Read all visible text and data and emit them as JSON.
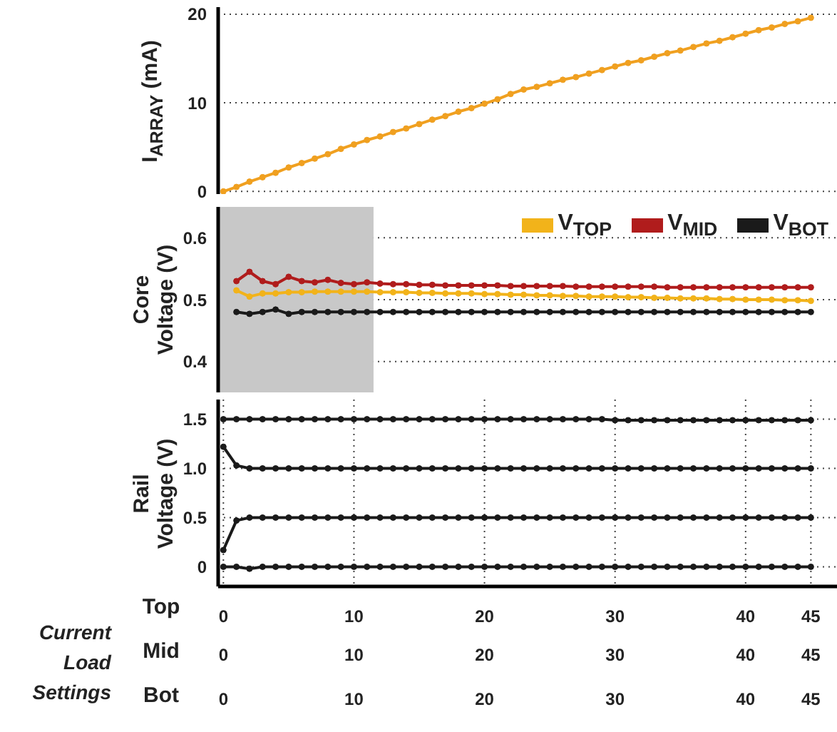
{
  "chart_data": [
    {
      "type": "line",
      "ylabel": "I$_{ARRAY}$ (mA)",
      "x": [
        0,
        1,
        2,
        3,
        4,
        5,
        6,
        7,
        8,
        9,
        10,
        11,
        12,
        13,
        14,
        15,
        16,
        17,
        18,
        19,
        20,
        21,
        22,
        23,
        24,
        25,
        26,
        27,
        28,
        29,
        30,
        31,
        32,
        33,
        34,
        35,
        36,
        37,
        38,
        39,
        40,
        41,
        42,
        43,
        44,
        45
      ],
      "series": [
        {
          "color": "#f0a020",
          "values": [
            0,
            0.5,
            1.1,
            1.6,
            2.1,
            2.7,
            3.2,
            3.7,
            4.2,
            4.8,
            5.3,
            5.8,
            6.2,
            6.7,
            7.1,
            7.6,
            8.1,
            8.5,
            9.0,
            9.4,
            9.9,
            10.4,
            11.0,
            11.5,
            11.8,
            12.2,
            12.6,
            12.9,
            13.3,
            13.7,
            14.1,
            14.5,
            14.8,
            15.2,
            15.6,
            15.9,
            16.3,
            16.7,
            17.0,
            17.4,
            17.8,
            18.2,
            18.5,
            18.9,
            19.2,
            19.6
          ]
        }
      ],
      "xlim": [
        -0.4,
        47
      ],
      "xticks": [
        0,
        10,
        20,
        30,
        40,
        45
      ],
      "ylim": [
        -0.3,
        20.8
      ],
      "yticks": [
        0,
        10,
        20
      ],
      "grid": true,
      "marker": "circle",
      "tick_labels": "y"
    },
    {
      "type": "line",
      "ylabel": "Core\nVoltage (V)",
      "x": [
        1,
        2,
        3,
        4,
        5,
        6,
        7,
        8,
        9,
        10,
        11,
        12,
        13,
        14,
        15,
        16,
        17,
        18,
        19,
        20,
        21,
        22,
        23,
        24,
        25,
        26,
        27,
        28,
        29,
        30,
        31,
        32,
        33,
        34,
        35,
        36,
        37,
        38,
        39,
        40,
        41,
        42,
        43,
        44,
        45
      ],
      "series": [
        {
          "name": "V$_{TOP}$",
          "color": "#f2b31a",
          "values": [
            0.515,
            0.505,
            0.51,
            0.51,
            0.512,
            0.512,
            0.513,
            0.513,
            0.513,
            0.513,
            0.513,
            0.512,
            0.512,
            0.512,
            0.511,
            0.511,
            0.51,
            0.51,
            0.51,
            0.509,
            0.509,
            0.508,
            0.508,
            0.507,
            0.507,
            0.506,
            0.506,
            0.505,
            0.505,
            0.505,
            0.504,
            0.504,
            0.503,
            0.503,
            0.502,
            0.502,
            0.502,
            0.501,
            0.501,
            0.5,
            0.5,
            0.5,
            0.499,
            0.499,
            0.498
          ]
        },
        {
          "name": "V$_{MID}$",
          "color": "#b01c1c",
          "values": [
            0.53,
            0.545,
            0.53,
            0.525,
            0.537,
            0.53,
            0.528,
            0.532,
            0.527,
            0.525,
            0.528,
            0.526,
            0.525,
            0.525,
            0.524,
            0.524,
            0.523,
            0.523,
            0.523,
            0.523,
            0.523,
            0.522,
            0.522,
            0.522,
            0.522,
            0.522,
            0.521,
            0.521,
            0.521,
            0.521,
            0.521,
            0.521,
            0.521,
            0.52,
            0.52,
            0.52,
            0.52,
            0.52,
            0.52,
            0.52,
            0.52,
            0.52,
            0.52,
            0.52,
            0.52
          ]
        },
        {
          "name": "V$_{BOT}$",
          "color": "#1a1a1a",
          "values": [
            0.48,
            0.477,
            0.48,
            0.484,
            0.477,
            0.48,
            0.48,
            0.48,
            0.48,
            0.48,
            0.48,
            0.48,
            0.48,
            0.48,
            0.48,
            0.48,
            0.48,
            0.48,
            0.48,
            0.48,
            0.48,
            0.48,
            0.48,
            0.48,
            0.48,
            0.48,
            0.48,
            0.48,
            0.48,
            0.48,
            0.48,
            0.48,
            0.48,
            0.48,
            0.48,
            0.48,
            0.48,
            0.48,
            0.48,
            0.48,
            0.48,
            0.48,
            0.48,
            0.48,
            0.48
          ]
        }
      ],
      "bands": [
        {
          "axis": "x",
          "from": -0.4,
          "to": 11.5,
          "color": "#c8c8c8"
        }
      ],
      "xlim": [
        -0.4,
        47
      ],
      "xticks": [
        0,
        10,
        20,
        30,
        40,
        45
      ],
      "ylim": [
        0.35,
        0.65
      ],
      "yticks": [
        0.4,
        0.5,
        0.6
      ],
      "grid": true,
      "marker": "circle",
      "legend": "top right",
      "tick_labels": "y"
    },
    {
      "type": "line",
      "ylabel": "Rail\nVoltage (V)",
      "xlabel": "Current Load Settings",
      "annotations": [
        "Top",
        "Mid",
        "Bot",
        "0",
        "10",
        "20",
        "30",
        "40",
        "45",
        "0",
        "10",
        "20",
        "30",
        "40",
        "45"
      ],
      "x": [
        0,
        1,
        2,
        3,
        4,
        5,
        6,
        7,
        8,
        9,
        10,
        11,
        12,
        13,
        14,
        15,
        16,
        17,
        18,
        19,
        20,
        21,
        22,
        23,
        24,
        25,
        26,
        27,
        28,
        29,
        30,
        31,
        32,
        33,
        34,
        35,
        36,
        37,
        38,
        39,
        40,
        41,
        42,
        43,
        44,
        45
      ],
      "series": [
        {
          "color": "#1a1a1a",
          "values": [
            1.5,
            1.5,
            1.5,
            1.5,
            1.5,
            1.5,
            1.5,
            1.5,
            1.5,
            1.5,
            1.5,
            1.5,
            1.5,
            1.5,
            1.5,
            1.5,
            1.5,
            1.5,
            1.5,
            1.5,
            1.5,
            1.5,
            1.5,
            1.5,
            1.5,
            1.5,
            1.5,
            1.5,
            1.5,
            1.5,
            1.49,
            1.49,
            1.49,
            1.49,
            1.49,
            1.49,
            1.49,
            1.49,
            1.49,
            1.49,
            1.49,
            1.49,
            1.49,
            1.49,
            1.49,
            1.49
          ]
        },
        {
          "color": "#1a1a1a",
          "values": [
            1.22,
            1.03,
            1.0,
            1.0,
            1.0,
            1.0,
            1.0,
            1.0,
            1.0,
            1.0,
            1.0,
            1.0,
            1.0,
            1.0,
            1.0,
            1.0,
            1.0,
            1.0,
            1.0,
            1.0,
            1.0,
            1.0,
            1.0,
            1.0,
            1.0,
            1.0,
            1.0,
            1.0,
            1.0,
            1.0,
            1.0,
            1.0,
            1.0,
            1.0,
            1.0,
            1.0,
            1.0,
            1.0,
            1.0,
            1.0,
            1.0,
            1.0,
            1.0,
            1.0,
            1.0,
            1.0
          ]
        },
        {
          "color": "#1a1a1a",
          "values": [
            0.17,
            0.47,
            0.5,
            0.5,
            0.5,
            0.5,
            0.5,
            0.5,
            0.5,
            0.5,
            0.5,
            0.5,
            0.5,
            0.5,
            0.5,
            0.5,
            0.5,
            0.5,
            0.5,
            0.5,
            0.5,
            0.5,
            0.5,
            0.5,
            0.5,
            0.5,
            0.5,
            0.5,
            0.5,
            0.5,
            0.5,
            0.5,
            0.5,
            0.5,
            0.5,
            0.5,
            0.5,
            0.5,
            0.5,
            0.5,
            0.5,
            0.5,
            0.5,
            0.5,
            0.5,
            0.5
          ]
        },
        {
          "color": "#1a1a1a",
          "values": [
            0,
            0,
            -0.02,
            0,
            0,
            0,
            0,
            0,
            0,
            0,
            0,
            0,
            0,
            0,
            0,
            0,
            0,
            0,
            0,
            0,
            0,
            0,
            0,
            0,
            0,
            0,
            0,
            0,
            0,
            0,
            0,
            0,
            0,
            0,
            0,
            0,
            0,
            0,
            0,
            0,
            0,
            0,
            0,
            0,
            0,
            0
          ]
        }
      ],
      "xlim": [
        -0.4,
        47
      ],
      "xticks": [
        0,
        10,
        20,
        30,
        40,
        45
      ],
      "ylim": [
        -0.2,
        1.7
      ],
      "yticks": [
        0,
        0.5,
        {
          "value": 1,
          "label": "1.0"
        },
        {
          "value": 1.5,
          "label": "1.5"
        }
      ],
      "grid": true,
      "marker": "circle"
    }
  ]
}
